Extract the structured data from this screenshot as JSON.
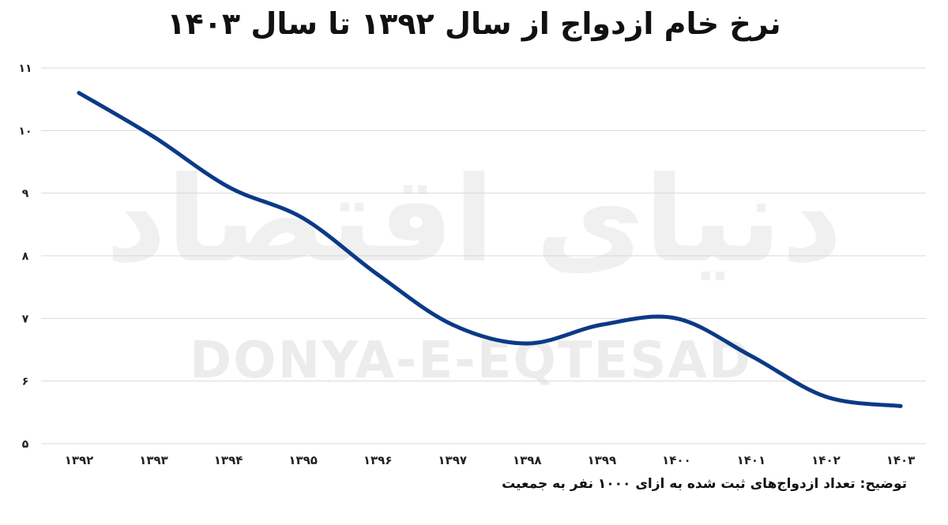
{
  "chart_data": {
    "type": "line",
    "title": "نرخ خام ازدواج از سال ۱۳۹۲ تا سال ۱۴۰۳",
    "note": "توضیح: تعداد ازدواج‌های ثبت شده به ازای ۱۰۰۰ نفر به جمعیت",
    "watermark_latin": "DONYA-E-EQTESAD",
    "watermark_persian": "دنیای اقتصاد",
    "categories": [
      "۱۳۹۲",
      "۱۳۹۳",
      "۱۳۹۴",
      "۱۳۹۵",
      "۱۳۹۶",
      "۱۳۹۷",
      "۱۳۹۸",
      "۱۳۹۹",
      "۱۴۰۰",
      "۱۴۰۱",
      "۱۴۰۲",
      "۱۴۰۳"
    ],
    "series": [
      {
        "values": [
          10.6,
          9.9,
          9.1,
          8.6,
          7.7,
          6.9,
          6.6,
          6.9,
          7.0,
          6.4,
          5.75,
          5.6
        ]
      }
    ],
    "ylim": [
      5,
      11
    ],
    "yticks": [
      5,
      6,
      7,
      8,
      9,
      10,
      11
    ],
    "ytick_labels": [
      "۵",
      "۶",
      "۷",
      "۸",
      "۹",
      "۱۰",
      "۱۱"
    ],
    "grid": true,
    "line_color": "#0b3a86"
  }
}
